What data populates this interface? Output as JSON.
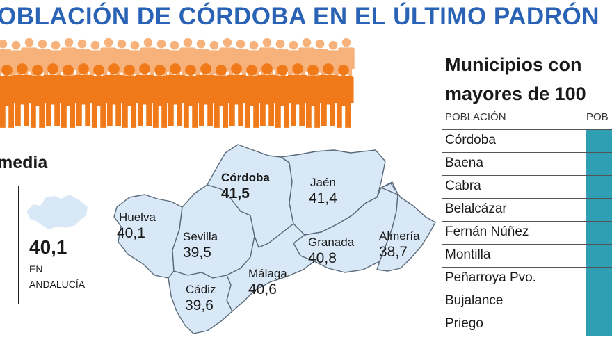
{
  "headline": "OBLACIÓN DE CÓRDOBA EN EL ÚLTIMO PADRÓN",
  "colors": {
    "headline": "#2a63b5",
    "crowd_front": "#f07a1a",
    "crowd_back": "#f6b27a",
    "map_fill": "#d9e8f6",
    "map_border": "#5a6a7a",
    "table_cell": "#2f9fb4"
  },
  "average": {
    "heading": "media",
    "value": "40,1",
    "caption_line1": "EN",
    "caption_line2": "ANDALUCÍA"
  },
  "provinces": [
    {
      "name": "Córdoba",
      "value": "41,5"
    },
    {
      "name": "Jaén",
      "value": "41,4"
    },
    {
      "name": "Huelva",
      "value": "40,1"
    },
    {
      "name": "Sevilla",
      "value": "39,5"
    },
    {
      "name": "Granada",
      "value": "40,8"
    },
    {
      "name": "Almería",
      "value": "38,7"
    },
    {
      "name": "Málaga",
      "value": "40,6"
    },
    {
      "name": "Cádiz",
      "value": "39,6"
    }
  ],
  "table": {
    "title_line1": "Municipios con",
    "title_line2": "mayores de 100",
    "col1_header": "POBLACIÓN",
    "col2_header": "POB",
    "rows": [
      "Córdoba",
      "Baena",
      "Cabra",
      "Belalcázar",
      "Fernán Núñez",
      "Montilla",
      "Peñarroya Pvo.",
      "Bujalance",
      "Priego"
    ]
  }
}
